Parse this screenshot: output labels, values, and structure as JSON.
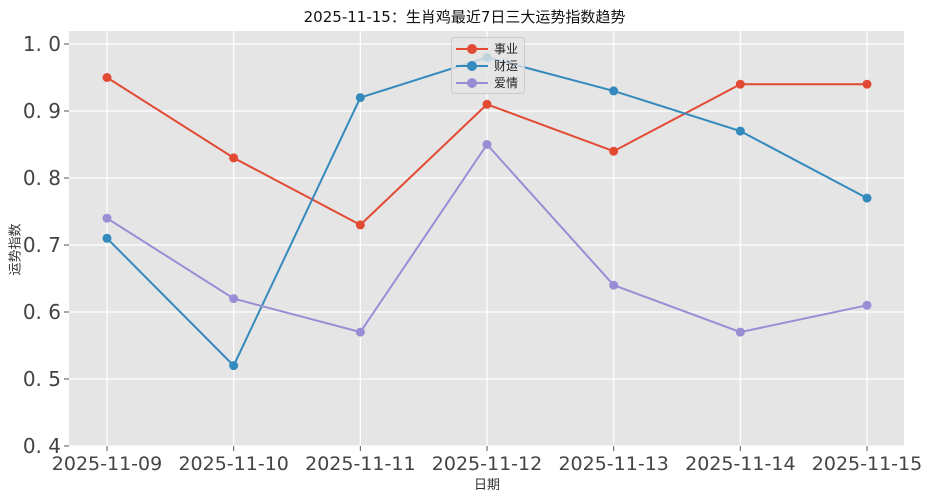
{
  "chart_data": {
    "type": "line",
    "title": "2025-11-15：生肖鸡最近7日三大运势指数趋势",
    "xlabel": "日期",
    "ylabel": "运势指数",
    "categories": [
      "2025-11-09",
      "2025-11-10",
      "2025-11-11",
      "2025-11-12",
      "2025-11-13",
      "2025-11-14",
      "2025-11-15"
    ],
    "series": [
      {
        "name": "事业",
        "color": "#E24A33",
        "values": [
          0.95,
          0.83,
          0.73,
          0.91,
          0.84,
          0.94,
          0.94
        ]
      },
      {
        "name": "财运",
        "color": "#348ABD",
        "values": [
          0.71,
          0.52,
          0.92,
          0.98,
          0.93,
          0.87,
          0.77
        ]
      },
      {
        "name": "爱情",
        "color": "#988ED5",
        "values": [
          0.74,
          0.62,
          0.57,
          0.85,
          0.64,
          0.57,
          0.61
        ]
      }
    ],
    "ylim": [
      0.4,
      1.0
    ],
    "yticks": [
      "0.4",
      "0.5",
      "0.6",
      "0.7",
      "0.8",
      "0.9",
      "1.0"
    ],
    "grid": true,
    "legend_position": "upper center",
    "background": "#E5E5E5"
  }
}
